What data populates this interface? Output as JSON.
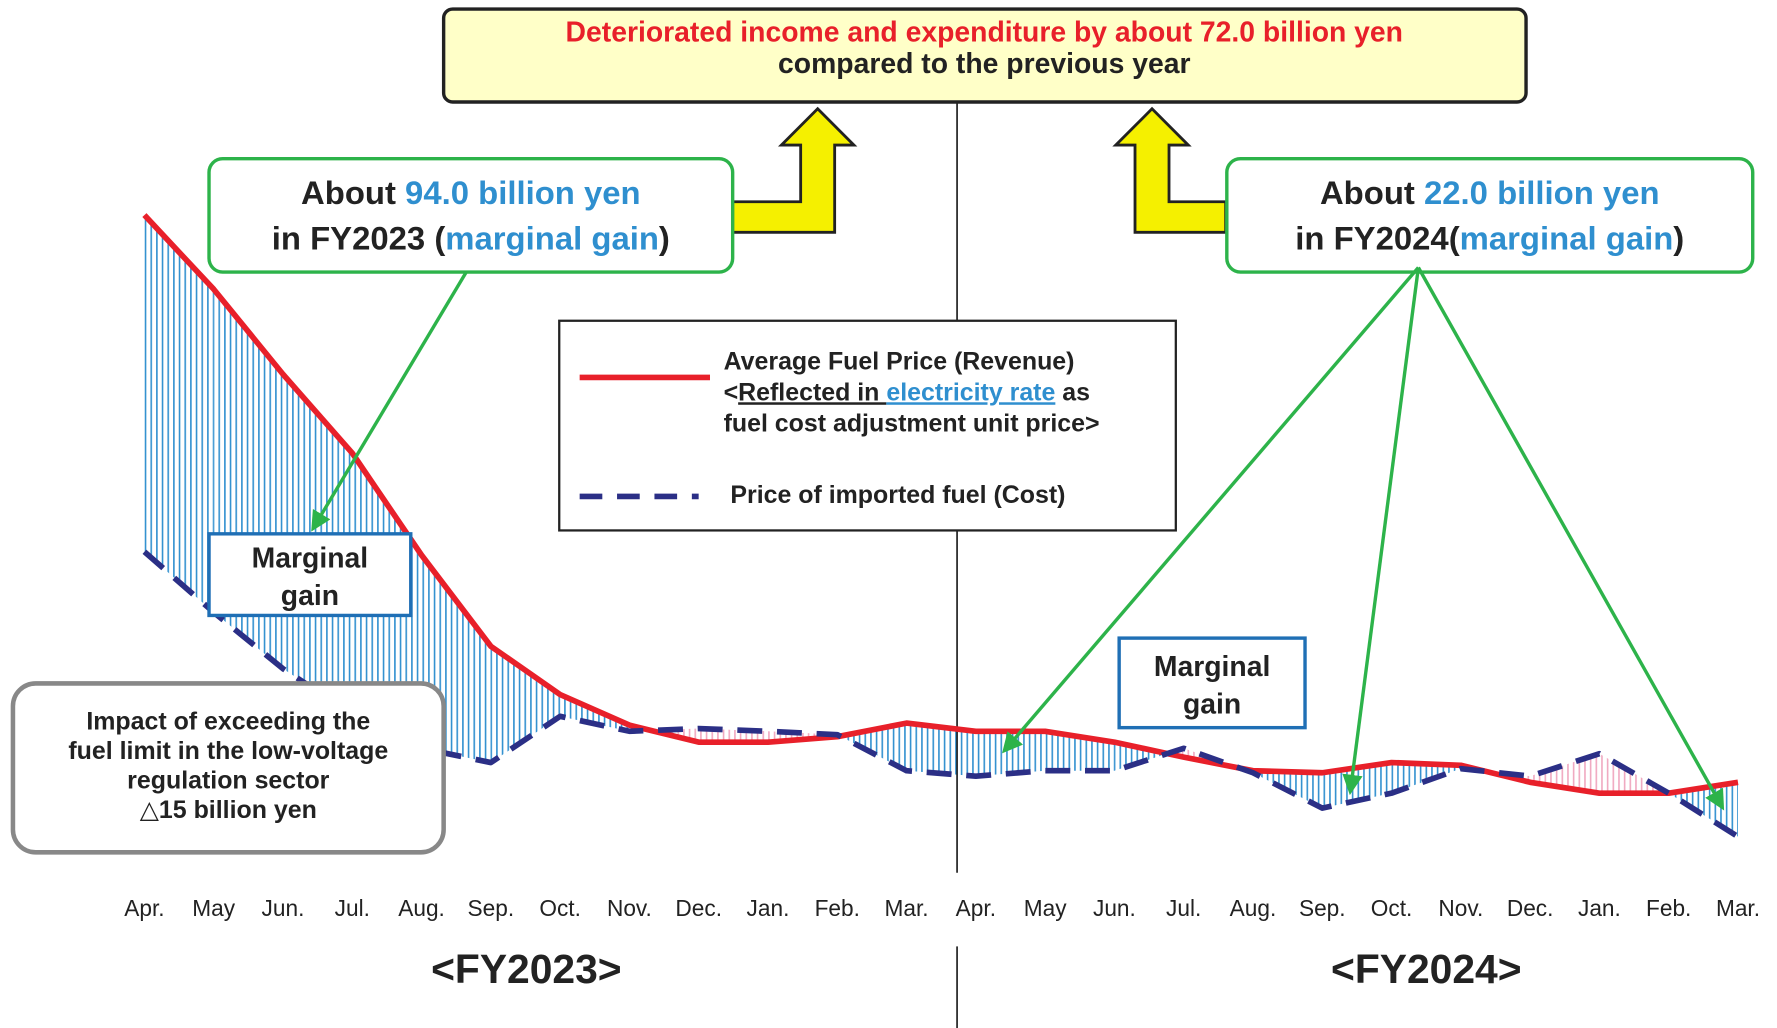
{
  "chart_data": {
    "type": "line",
    "header": {
      "line1": "Deteriorated income and expenditure by about 72.0 billion yen",
      "line2": "compared to the previous year"
    },
    "callout_left": {
      "line1": [
        "About ",
        "94.0 billion yen"
      ],
      "line2": [
        "in FY2023 (",
        "marginal gain",
        ")"
      ]
    },
    "callout_right": {
      "line1": [
        "About ",
        "22.0 billion yen"
      ],
      "line2": [
        "in FY2024(",
        "marginal gain",
        ")"
      ]
    },
    "legend_notes": {
      "line2": [
        "<",
        "Reflected in ",
        "electricity rate",
        " as"
      ],
      "line3": "fuel cost adjustment unit price>"
    },
    "gain_box_left": [
      "Marginal",
      "gain"
    ],
    "gain_box_right": [
      "Marginal",
      "gain"
    ],
    "impact_box": [
      "Impact of exceeding the",
      "fuel limit in the low-voltage",
      "regulation sector",
      "△15 billion yen"
    ],
    "periods": [
      "<FY2023>",
      "<FY2024>"
    ],
    "categories": [
      "Apr.",
      "May",
      "Jun.",
      "Jul.",
      "Aug.",
      "Sep.",
      "Oct.",
      "Nov.",
      "Dec.",
      "Jan.",
      "Feb.",
      "Mar.",
      "Apr.",
      "May",
      "Jun.",
      "Jul.",
      "Aug.",
      "Sep.",
      "Oct.",
      "Nov.",
      "Dec.",
      "Jan.",
      "Feb.",
      "Mar."
    ],
    "ylim": [
      0,
      100
    ],
    "series": [
      {
        "name": "Average Fuel Price (Revenue)",
        "color": "#e8202a",
        "values": [
          96.7,
          85.8,
          73.3,
          61.7,
          46.7,
          33.3,
          26.2,
          21.7,
          19.2,
          19.2,
          20,
          22,
          20.8,
          20.8,
          19.2,
          17,
          15,
          14.7,
          16.2,
          15.8,
          13.3,
          11.7,
          11.7,
          13.3
        ]
      },
      {
        "name": "Price of imported fuel (Cost)",
        "color": "#2b2f86",
        "values": [
          47.2,
          38.3,
          30,
          23.3,
          18.3,
          16.2,
          23,
          20.8,
          21.2,
          20.8,
          20.3,
          15,
          14.2,
          15,
          15,
          18.3,
          14.7,
          9.5,
          11.7,
          15.3,
          14.2,
          17.5,
          11.7,
          5.3
        ]
      }
    ]
  }
}
